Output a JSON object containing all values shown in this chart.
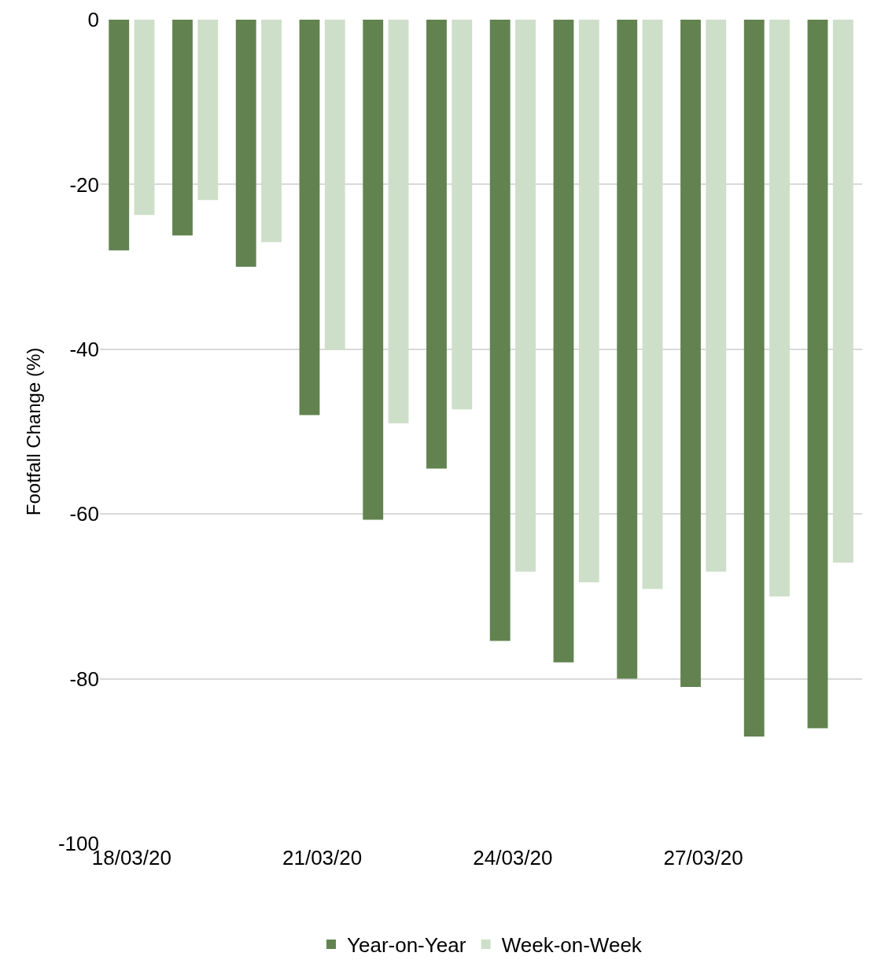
{
  "chart_data": {
    "type": "bar",
    "ylabel": "Footfall Change (%)",
    "categories": [
      "18/03/20",
      null,
      null,
      "21/03/20",
      null,
      null,
      "24/03/20",
      null,
      null,
      "27/03/20",
      null,
      null
    ],
    "series": [
      {
        "name": "Year-on-Year",
        "color": "#62834f",
        "values": [
          -28,
          -26.2,
          -30,
          -48,
          -60.7,
          -54.5,
          -75.4,
          -78,
          -80,
          -81,
          -87,
          -86
        ]
      },
      {
        "name": "Week-on-Week",
        "color": "#cddfc8",
        "values": [
          -23.7,
          -21.9,
          -27,
          -40.1,
          -49,
          -47.3,
          -67,
          -68.3,
          -69.1,
          -67,
          -70,
          -65.9
        ]
      }
    ],
    "ylim": [
      -100,
      0
    ],
    "yticks": [
      -100,
      -80,
      -60,
      -40,
      -20,
      0
    ],
    "grid": "y",
    "legend": "bottom"
  }
}
